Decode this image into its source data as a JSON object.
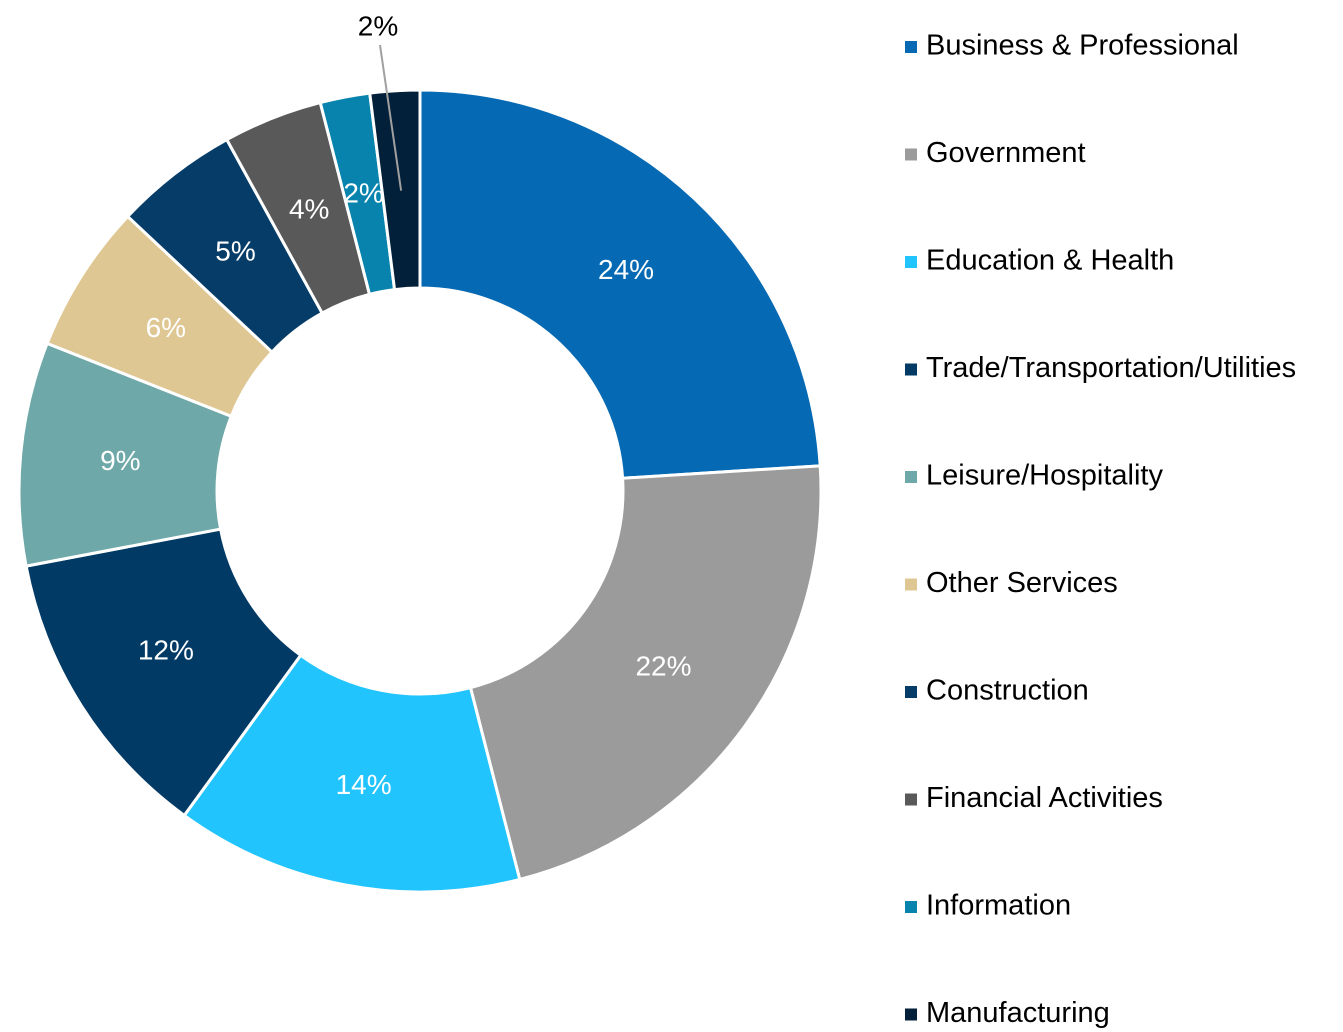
{
  "chart_data": {
    "type": "donut",
    "categories": [
      "Business & Professional",
      "Government",
      "Education & Health",
      "Trade/Transportation/Utilities",
      "Leisure/Hospitality",
      "Other Services",
      "Construction",
      "Financial Activities",
      "Information",
      "Manufacturing"
    ],
    "values": [
      24,
      22,
      14,
      12,
      9,
      6,
      5,
      4,
      2,
      2
    ],
    "value_labels": [
      "24%",
      "22%",
      "14%",
      "12%",
      "9%",
      "6%",
      "5%",
      "4%",
      "2%",
      "2%"
    ],
    "colors": [
      "#0569b3",
      "#9b9b9b",
      "#22c4fd",
      "#023a66",
      "#6fa8a8",
      "#dfc793",
      "#063d68",
      "#595959",
      "#0783ad",
      "#03203a"
    ],
    "legend": "right"
  }
}
